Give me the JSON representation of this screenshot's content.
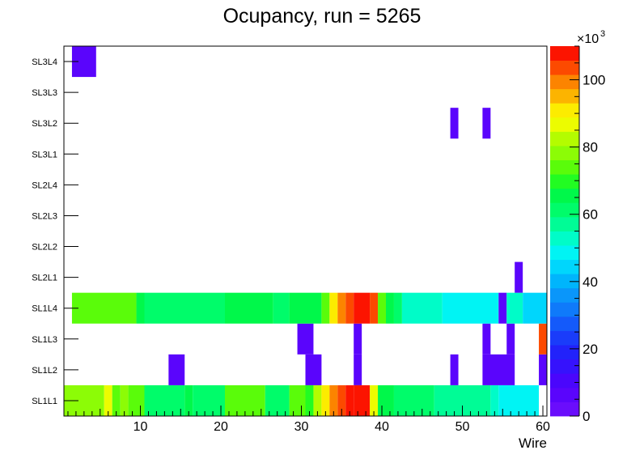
{
  "chart_data": {
    "type": "heatmap",
    "title": "Ocupancy, run = 5265",
    "xlabel": "Wire",
    "xlim": [
      0.5,
      60.5
    ],
    "xticks": [
      10,
      20,
      30,
      40,
      50,
      60
    ],
    "yticks": [
      "SL1L1",
      "SL1L2",
      "SL1L3",
      "SL1L4",
      "SL2L1",
      "SL2L2",
      "SL2L3",
      "SL2L4",
      "SL3L1",
      "SL3L2",
      "SL3L3",
      "SL3L4"
    ],
    "zlim": [
      0,
      110000
    ],
    "zticks": [
      0,
      20,
      40,
      60,
      80,
      100
    ],
    "z_multiplier_base": "×10",
    "z_multiplier_exp": "3",
    "cells": [
      {
        "layer": "SL1L1",
        "ranges": [
          [
            1,
            5,
            78000
          ],
          [
            6,
            6,
            88000
          ],
          [
            7,
            7,
            76000
          ],
          [
            8,
            8,
            80000
          ],
          [
            9,
            10,
            72000
          ],
          [
            11,
            15,
            63000
          ],
          [
            16,
            16,
            66000
          ],
          [
            17,
            20,
            63000
          ],
          [
            21,
            25,
            72000
          ],
          [
            26,
            28,
            63000
          ],
          [
            29,
            30,
            72000
          ],
          [
            31,
            31,
            68000
          ],
          [
            32,
            32,
            82000
          ],
          [
            33,
            33,
            92000
          ],
          [
            34,
            34,
            99000
          ],
          [
            35,
            35,
            103000
          ],
          [
            36,
            36,
            107000
          ],
          [
            37,
            38,
            112000
          ],
          [
            39,
            39,
            88000
          ],
          [
            40,
            41,
            66000
          ],
          [
            42,
            46,
            60000
          ],
          [
            47,
            53,
            55000
          ],
          [
            54,
            54,
            51000
          ],
          [
            55,
            59,
            47000
          ]
        ]
      },
      {
        "layer": "SL1L2",
        "ranges": [
          [
            14,
            15,
            5000
          ],
          [
            31,
            32,
            5000
          ],
          [
            37,
            37,
            5000
          ],
          [
            49,
            49,
            5000
          ],
          [
            53,
            56,
            5000
          ],
          [
            60,
            60,
            5000
          ]
        ]
      },
      {
        "layer": "SL1L3",
        "ranges": [
          [
            30,
            31,
            5000
          ],
          [
            37,
            37,
            5000
          ],
          [
            53,
            53,
            5000
          ],
          [
            56,
            56,
            5000
          ],
          [
            60,
            60,
            103000
          ]
        ]
      },
      {
        "layer": "SL1L4",
        "ranges": [
          [
            2,
            9,
            76000
          ],
          [
            10,
            10,
            66000
          ],
          [
            11,
            20,
            63000
          ],
          [
            21,
            26,
            66000
          ],
          [
            27,
            28,
            63000
          ],
          [
            29,
            32,
            66000
          ],
          [
            33,
            33,
            76000
          ],
          [
            34,
            34,
            90000
          ],
          [
            35,
            35,
            99000
          ],
          [
            36,
            36,
            102000
          ],
          [
            37,
            38,
            110000
          ],
          [
            39,
            39,
            102000
          ],
          [
            40,
            40,
            76000
          ],
          [
            41,
            41,
            66000
          ],
          [
            42,
            42,
            63000
          ],
          [
            43,
            47,
            54000
          ],
          [
            48,
            54,
            50000
          ],
          [
            55,
            55,
            5000
          ],
          [
            56,
            57,
            51000
          ],
          [
            58,
            60,
            43000
          ]
        ]
      },
      {
        "layer": "SL2L1",
        "ranges": [
          [
            57,
            57,
            5000
          ]
        ]
      },
      {
        "layer": "SL3L2",
        "ranges": [
          [
            49,
            49,
            5000
          ],
          [
            53,
            53,
            5000
          ]
        ]
      },
      {
        "layer": "SL3L4",
        "ranges": [
          [
            2,
            4,
            5000
          ]
        ]
      }
    ]
  }
}
